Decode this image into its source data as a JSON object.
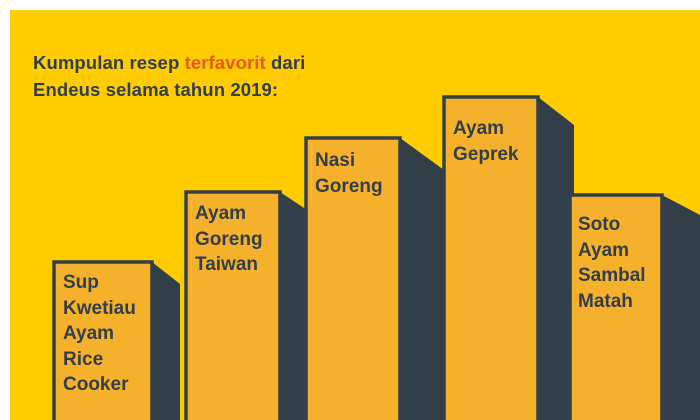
{
  "title": {
    "line1_before": "Kumpulan resep ",
    "line1_highlight": "terfavorit",
    "line1_after": " dari",
    "line2": "Endeus selama tahun 2019:"
  },
  "colors": {
    "background": "#FFCC00",
    "block_face": "#F5B12C",
    "block_shadow": "#323E48",
    "text": "#323E48",
    "highlight": "#E85A21"
  },
  "recipes": [
    {
      "lines": [
        "Sup",
        "Kwetiau",
        "Ayam",
        "Rice",
        "Cooker"
      ]
    },
    {
      "lines": [
        "Ayam",
        "Goreng",
        "Taiwan"
      ]
    },
    {
      "lines": [
        "Nasi",
        "Goreng"
      ]
    },
    {
      "lines": [
        "Ayam",
        "Geprek"
      ]
    },
    {
      "lines": [
        "Soto",
        "Ayam",
        "Sambal",
        "Matah"
      ]
    }
  ]
}
